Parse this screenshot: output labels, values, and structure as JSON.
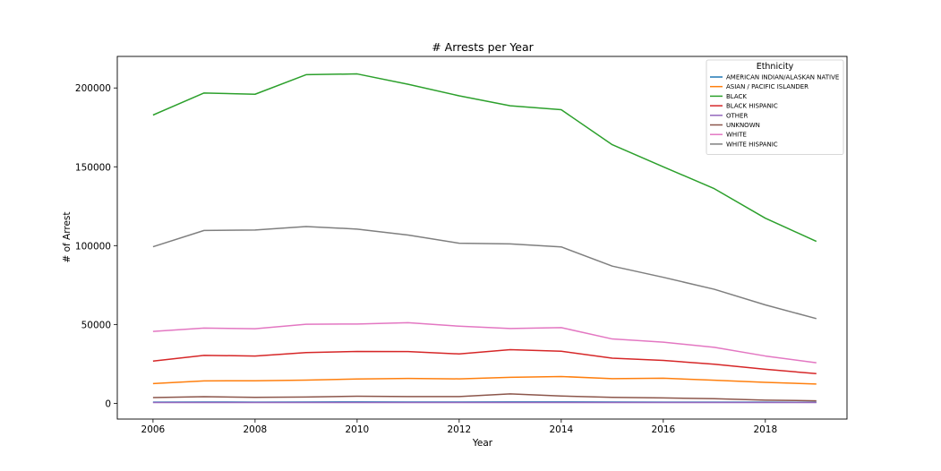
{
  "chart_data": {
    "type": "line",
    "title": "# Arrests per Year",
    "xlabel": "Year",
    "ylabel": "# of Arrest",
    "xlim": [
      2005.3,
      2019.6
    ],
    "ylim": [
      -10000,
      220000
    ],
    "x_ticks": [
      2006,
      2008,
      2010,
      2012,
      2014,
      2016,
      2018
    ],
    "y_ticks": [
      0,
      50000,
      100000,
      150000,
      200000
    ],
    "grid": false,
    "legend": {
      "title": "Ethnicity",
      "placement": "top-right"
    },
    "x": [
      2006,
      2007,
      2008,
      2009,
      2010,
      2011,
      2012,
      2013,
      2014,
      2015,
      2016,
      2017,
      2018,
      2019
    ],
    "series": [
      {
        "name": "AMERICAN INDIAN/ALASKAN NATIVE",
        "color": "#1f77b4",
        "values": [
          700,
          800,
          750,
          800,
          850,
          800,
          800,
          850,
          850,
          800,
          750,
          750,
          700,
          650
        ]
      },
      {
        "name": "ASIAN / PACIFIC ISLANDER",
        "color": "#ff7f0e",
        "values": [
          12500,
          14200,
          14300,
          14700,
          15400,
          15800,
          15500,
          16500,
          17000,
          15600,
          15900,
          14600,
          13300,
          12200
        ]
      },
      {
        "name": "BLACK",
        "color": "#2ca02c",
        "values": [
          182800,
          196800,
          196000,
          208400,
          208900,
          202300,
          195000,
          188700,
          186200,
          164000,
          150000,
          136100,
          117400,
          102700
        ]
      },
      {
        "name": "BLACK HISPANIC",
        "color": "#d62728",
        "values": [
          26800,
          30400,
          30000,
          32200,
          32900,
          32800,
          31300,
          34000,
          33000,
          28600,
          27200,
          24800,
          21600,
          18800
        ]
      },
      {
        "name": "OTHER",
        "color": "#9467bd",
        "values": [
          500,
          500,
          500,
          500,
          500,
          500,
          500,
          500,
          500,
          500,
          500,
          500,
          500,
          500
        ]
      },
      {
        "name": "UNKNOWN",
        "color": "#8c564b",
        "values": [
          3600,
          4200,
          3800,
          4000,
          4500,
          4300,
          4300,
          6000,
          4600,
          3800,
          3400,
          2900,
          2000,
          1600
        ]
      },
      {
        "name": "WHITE",
        "color": "#e377c2",
        "values": [
          45600,
          47700,
          47300,
          50100,
          50300,
          51100,
          48900,
          47400,
          48000,
          40800,
          38800,
          35500,
          30000,
          25700
        ]
      },
      {
        "name": "WHITE HISPANIC",
        "color": "#7f7f7f",
        "values": [
          99300,
          109600,
          109900,
          112100,
          110500,
          106700,
          101500,
          101100,
          99200,
          87000,
          79900,
          72300,
          62400,
          53700
        ]
      }
    ]
  }
}
